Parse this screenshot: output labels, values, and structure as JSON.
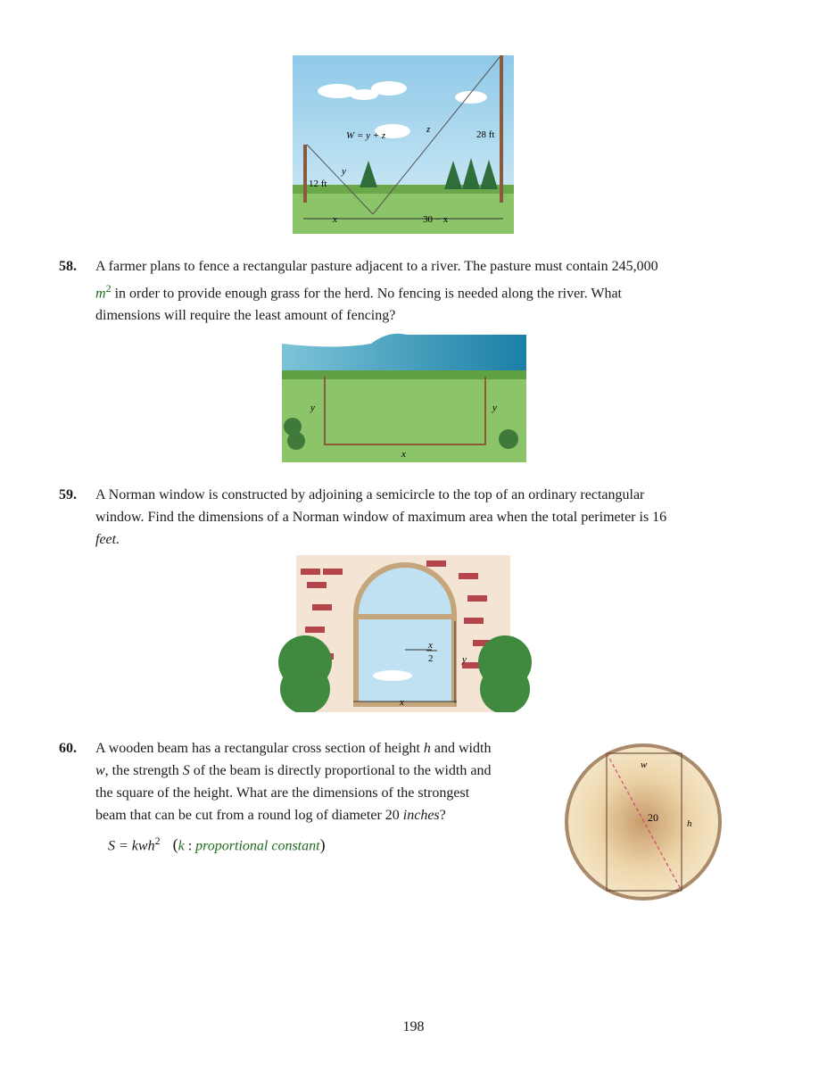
{
  "fig57": {
    "labels": {
      "w": "W = y + z",
      "z": "z",
      "y": "y",
      "h28": "28 ft",
      "h12": "12 ft",
      "x": "x",
      "x30": "30 − x"
    }
  },
  "p58": {
    "number": "58.",
    "line1": "A farmer plans to fence a rectangular pasture adjacent to a river. The pasture must contain 245,000",
    "unit_m": "m",
    "unit_exp": "2",
    "line2_rest": "in order to provide enough grass for the herd. No fencing is needed along the river. What",
    "line3": "dimensions will require the least amount of fencing?"
  },
  "fig58": {
    "labels": {
      "y_left": "y",
      "y_right": "y",
      "x": "x"
    }
  },
  "p59": {
    "number": "59.",
    "line1": "A Norman window is constructed by adjoining a semicircle to the top of an ordinary rectangular",
    "line2": "window. Find the dimensions of a Norman window of maximum area when the total perimeter is 16",
    "line3": "feet."
  },
  "fig59": {
    "labels": {
      "x_num": "x",
      "two": "2",
      "y": "y",
      "x": "x"
    }
  },
  "p60": {
    "number": "60.",
    "line1_a": "A wooden beam has a rectangular cross section of height",
    "var_h": "h",
    "line1_b": "and width",
    "var_w": "w",
    "line2_a": ", the strength",
    "var_S": "S",
    "line2_b": "of the beam is directly proportional to the width and",
    "line3": "the square of the height. What are the dimensions of the strongest",
    "line4_a": "beam that can be cut from a round log of diameter 20",
    "line4_unit": "inches",
    "line4_end": "?",
    "formula_lhs": "S = kwh",
    "formula_exp": "2",
    "formula_note_k": "k",
    "formula_note_sep": " : ",
    "formula_note_text": "proportional constant"
  },
  "fig60": {
    "labels": {
      "w": "w",
      "h": "h",
      "d": "20"
    }
  },
  "page": {
    "number": "198"
  }
}
